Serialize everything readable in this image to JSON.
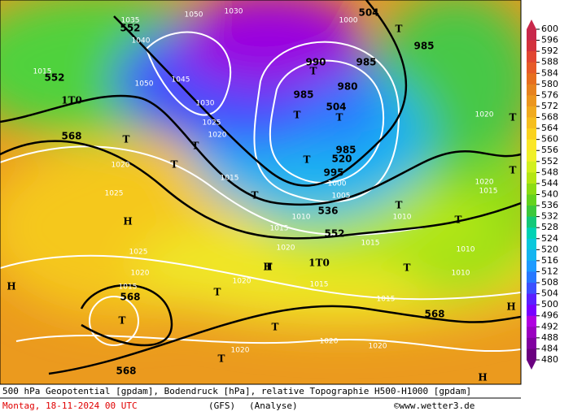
{
  "footer": {
    "line1": "500 hPa Geopotential [gpdam], Bodendruck [hPa], relative Topographie H500-H1000 [gpdam]",
    "date": "Montag, 18-11-2024  00 UTC",
    "model": "(GFS)",
    "run": "(Analyse)",
    "credit": "©www.wetter3.de"
  },
  "colorbar": {
    "levels": [
      600,
      596,
      592,
      588,
      584,
      580,
      576,
      572,
      568,
      564,
      560,
      556,
      552,
      548,
      544,
      540,
      536,
      532,
      528,
      524,
      520,
      516,
      512,
      508,
      504,
      500,
      496,
      492,
      488,
      484,
      480
    ],
    "colors": [
      "#c8284b",
      "#d2323c",
      "#e14632",
      "#e65a28",
      "#e66e1e",
      "#e6821e",
      "#eb961e",
      "#f0aa1e",
      "#f5be1e",
      "#fad21e",
      "#fae628",
      "#f0f028",
      "#d2f01e",
      "#b4e614",
      "#8cdc14",
      "#64d21e",
      "#3cc83c",
      "#14c878",
      "#00d2b4",
      "#0ac8dc",
      "#14b4f0",
      "#1e9bff",
      "#2878ff",
      "#3c50ff",
      "#5a20ff",
      "#7800ff",
      "#b000e0",
      "#9a00c0",
      "#8000a0",
      "#6a0080"
    ]
  },
  "map_labels": [
    "552",
    "552",
    "568",
    "504",
    "504",
    "520",
    "536",
    "552",
    "568",
    "568",
    "568",
    "1040",
    "1030",
    "1050",
    "1045",
    "1030",
    "1025",
    "1020",
    "1015",
    "1020",
    "1025",
    "1025",
    "1020",
    "1015",
    "1020",
    "1020",
    "1020",
    "1020",
    "1015",
    "1015",
    "1015",
    "1010",
    "1010",
    "1010",
    "1015",
    "1020",
    "1020",
    "1010",
    "1015",
    "1020",
    "1005",
    "1000",
    "995",
    "985",
    "980",
    "985",
    "990",
    "985",
    "985",
    "1000",
    "1015",
    "1035",
    "1050",
    "T",
    "T",
    "T",
    "T",
    "T",
    "T",
    "T",
    "T",
    "T",
    "T",
    "T",
    "T",
    "T",
    "T",
    "T",
    "T",
    "T",
    "T",
    "T",
    "H",
    "H",
    "H",
    "H",
    "H",
    "1T0",
    "1T0"
  ]
}
